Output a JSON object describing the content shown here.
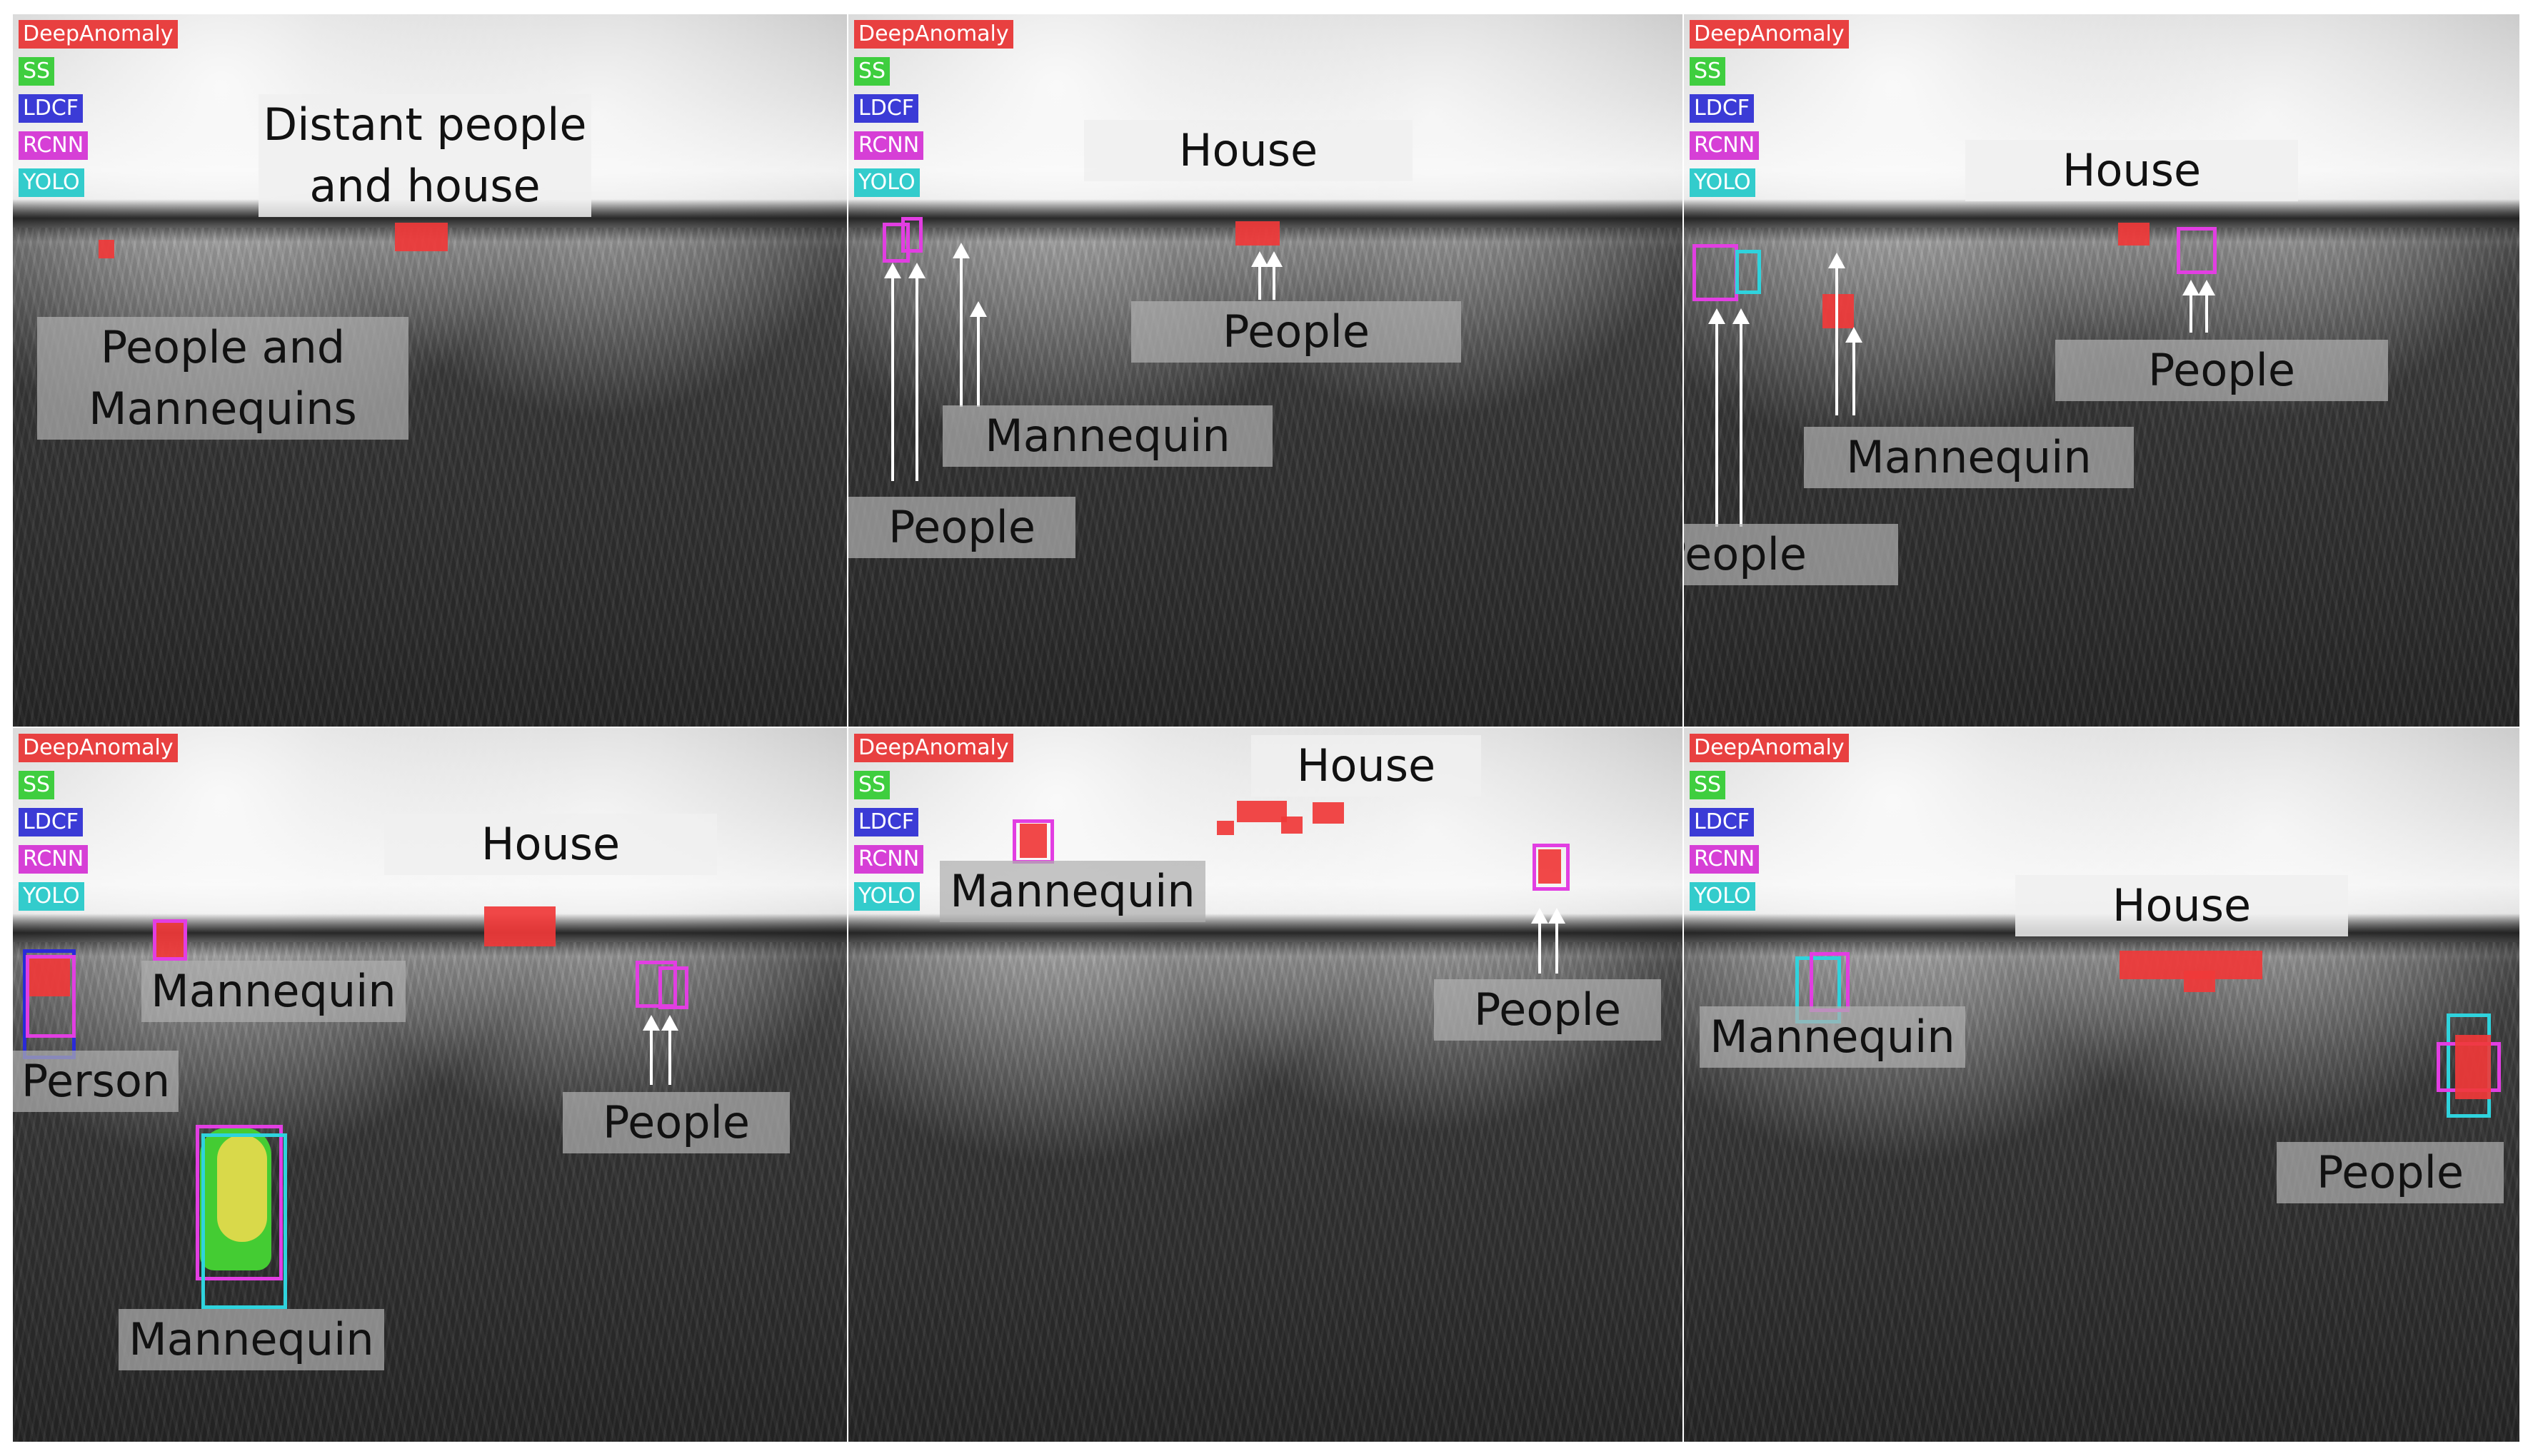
{
  "legend": [
    "DeepAnomaly",
    "SS",
    "LDCF",
    "RCNN",
    "YOLO"
  ],
  "panels": [
    {
      "labels": [
        "Distant people\nand house",
        "People and\nMannequins"
      ]
    },
    {
      "labels": [
        "House",
        "People",
        "Mannequin",
        "People"
      ]
    },
    {
      "labels": [
        "House",
        "People",
        "Mannequin",
        "People"
      ]
    },
    {
      "labels": [
        "House",
        "Mannequin",
        "Person",
        "People",
        "Mannequin"
      ]
    },
    {
      "labels": [
        "House",
        "Mannequin",
        "People"
      ]
    },
    {
      "labels": [
        "House",
        "Mannequin",
        "People"
      ]
    }
  ]
}
